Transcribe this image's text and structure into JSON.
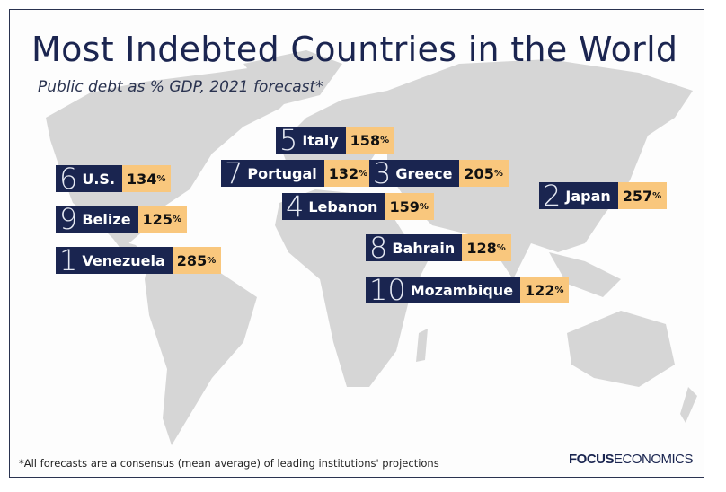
{
  "title": "Most Indebted Countries in the World",
  "subtitle": "Public debt as % GDP, 2021 forecast*",
  "colors": {
    "navy": "#1a2550",
    "value_bg": "#f9c77d",
    "land": "#d6d6d6"
  },
  "countries": [
    {
      "rank": "5",
      "name": "Italy",
      "value": "158",
      "unit": "%"
    },
    {
      "rank": "7",
      "name": "Portugal",
      "value": "132",
      "unit": "%"
    },
    {
      "rank": "3",
      "name": "Greece",
      "value": "205",
      "unit": "%"
    },
    {
      "rank": "2",
      "name": "Japan",
      "value": "257",
      "unit": "%"
    },
    {
      "rank": "6",
      "name": "U.S.",
      "value": "134",
      "unit": "%"
    },
    {
      "rank": "9",
      "name": "Belize",
      "value": "125",
      "unit": "%"
    },
    {
      "rank": "4",
      "name": "Lebanon",
      "value": "159",
      "unit": "%"
    },
    {
      "rank": "8",
      "name": "Bahrain",
      "value": "128",
      "unit": "%"
    },
    {
      "rank": "1",
      "name": "Venezuela",
      "value": "285",
      "unit": "%"
    },
    {
      "rank": "10",
      "name": "Mozambique",
      "value": "122",
      "unit": "%"
    }
  ],
  "footnote": "*All forecasts are a consensus (mean average) of leading institutions' projections",
  "logo": {
    "bold": "FOCUS",
    "light": "ECONOMICS"
  }
}
